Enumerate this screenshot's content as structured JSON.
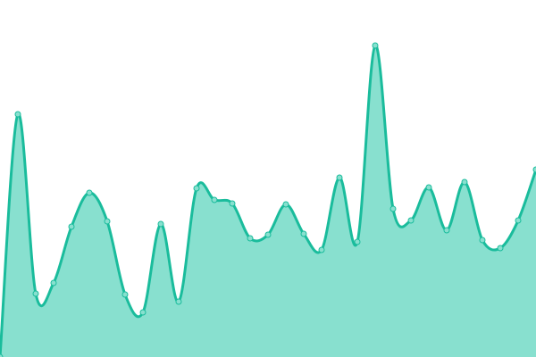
{
  "chart_data": {
    "type": "area",
    "title": "",
    "xlabel": "",
    "ylabel": "",
    "x": [
      0,
      1,
      2,
      3,
      4,
      5,
      6,
      7,
      8,
      9,
      10,
      11,
      12,
      13,
      14,
      15,
      16,
      17,
      18,
      19,
      20,
      21,
      22,
      23,
      24,
      25,
      26,
      27,
      28,
      29,
      30
    ],
    "series": [
      {
        "values": [
          0,
          272,
          71,
          83,
          146,
          184,
          152,
          70,
          50,
          149,
          62,
          189,
          176,
          172,
          133,
          137,
          171,
          138,
          120,
          201,
          129,
          349,
          166,
          153,
          190,
          142,
          196,
          131,
          122,
          153,
          210
        ]
      }
    ],
    "xlim": [
      0,
      30
    ],
    "ylim": [
      0,
      400
    ],
    "grid": false,
    "axes_visible": false,
    "legend": "none",
    "curve": "smooth",
    "markers": true,
    "colors": {
      "line": "#1abc9c",
      "fill": "#88e0cf",
      "marker_fill": "#88e0cf"
    }
  }
}
